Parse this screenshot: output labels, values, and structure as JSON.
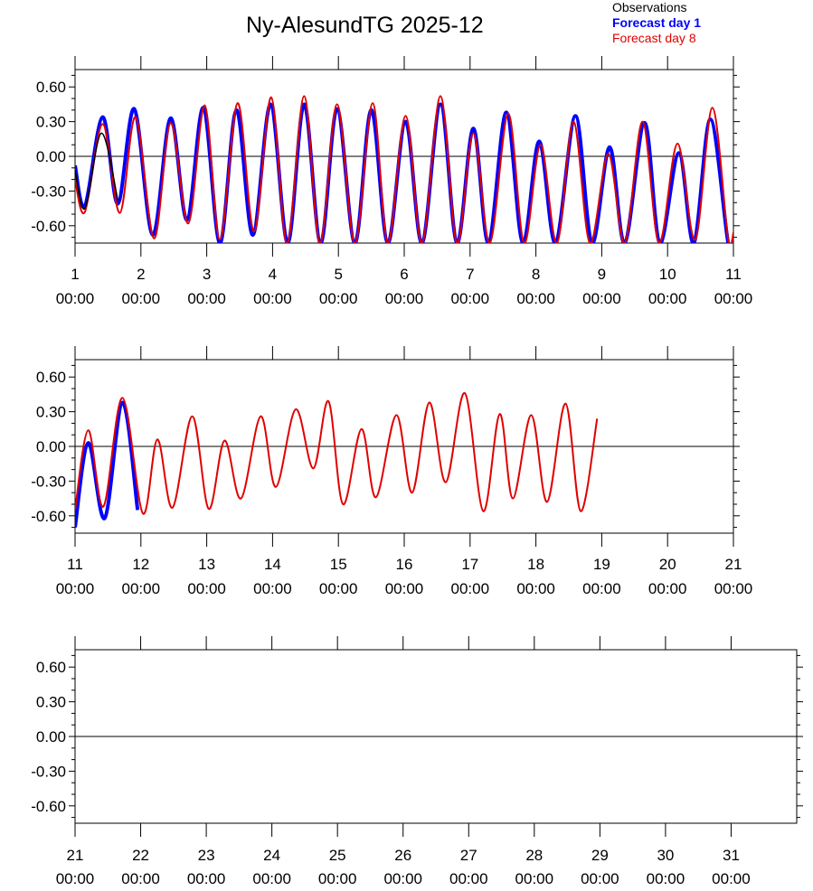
{
  "page": {
    "title": "Ny-AlesundTG 2025-12",
    "legend": [
      {
        "label": "Observations",
        "color": "#000000"
      },
      {
        "label": "Forecast day 1",
        "color": "#0000ff"
      },
      {
        "label": "Forecast day 8",
        "color": "#e00000"
      }
    ]
  },
  "chart_data": [
    {
      "type": "line",
      "title": "",
      "xlabel": "",
      "ylabel": "",
      "xlim": [
        1,
        11
      ],
      "ylim": [
        -0.75,
        0.75
      ],
      "yticks": [
        "0.60",
        "0.30",
        "0.00",
        "-0.30",
        "-0.60"
      ],
      "xtick_days": [
        "1",
        "2",
        "3",
        "4",
        "5",
        "6",
        "7",
        "8",
        "9",
        "10",
        "11"
      ],
      "xtick_time": "00:00",
      "zero_line": true,
      "series": [
        {
          "name": "Observations",
          "color": "#000000",
          "x": [
            1.0,
            1.15,
            1.4,
            1.65
          ],
          "y": [
            -0.12,
            -0.45,
            0.2,
            -0.38
          ]
        },
        {
          "name": "Forecast day 1",
          "color": "#0000ff",
          "x": [
            1.0,
            1.15,
            1.42,
            1.65,
            1.9,
            2.18,
            2.45,
            2.7,
            2.95,
            3.2,
            3.45,
            3.7,
            3.97,
            4.23,
            4.48,
            4.73,
            4.98,
            5.25,
            5.5,
            5.75,
            6.02,
            6.27,
            6.55,
            6.8,
            7.05,
            7.28,
            7.55,
            7.8,
            8.05,
            8.3,
            8.6,
            8.85,
            9.12,
            9.35,
            9.65,
            9.88,
            10.17,
            10.4,
            10.65,
            10.92,
            11.0
          ],
          "y": [
            -0.08,
            -0.43,
            0.34,
            -0.41,
            0.41,
            -0.68,
            0.33,
            -0.55,
            0.42,
            -0.75,
            0.4,
            -0.68,
            0.45,
            -0.75,
            0.45,
            -0.75,
            0.41,
            -0.75,
            0.4,
            -0.75,
            0.3,
            -0.75,
            0.45,
            -0.75,
            0.24,
            -0.75,
            0.38,
            -0.75,
            0.13,
            -0.75,
            0.35,
            -0.75,
            0.08,
            -0.75,
            0.29,
            -0.75,
            0.03,
            -0.75,
            0.32,
            -0.75,
            -0.71
          ]
        },
        {
          "name": "Forecast day 8",
          "color": "#e00000",
          "x": [
            1.0,
            1.15,
            1.42,
            1.68,
            1.92,
            2.2,
            2.45,
            2.72,
            2.97,
            3.2,
            3.47,
            3.72,
            3.98,
            4.22,
            4.48,
            4.72,
            4.98,
            5.25,
            5.52,
            5.75,
            6.02,
            6.27,
            6.55,
            6.8,
            7.05,
            7.3,
            7.58,
            7.82,
            8.07,
            8.32,
            8.57,
            8.82,
            9.1,
            9.35,
            9.62,
            9.87,
            10.15,
            10.42,
            10.68,
            10.92,
            11.0
          ],
          "y": [
            -0.2,
            -0.48,
            0.28,
            -0.49,
            0.34,
            -0.71,
            0.29,
            -0.58,
            0.44,
            -0.72,
            0.46,
            -0.65,
            0.51,
            -0.75,
            0.52,
            -0.75,
            0.45,
            -0.75,
            0.46,
            -0.75,
            0.35,
            -0.75,
            0.52,
            -0.75,
            0.2,
            -0.75,
            0.37,
            -0.75,
            0.1,
            -0.75,
            0.3,
            -0.75,
            0.02,
            -0.75,
            0.3,
            -0.75,
            0.11,
            -0.72,
            0.42,
            -0.72,
            -0.66
          ]
        }
      ]
    },
    {
      "type": "line",
      "title": "",
      "xlabel": "",
      "ylabel": "",
      "xlim": [
        11,
        21
      ],
      "ylim": [
        -0.75,
        0.75
      ],
      "yticks": [
        "0.60",
        "0.30",
        "0.00",
        "-0.30",
        "-0.60"
      ],
      "xtick_days": [
        "11",
        "12",
        "13",
        "14",
        "15",
        "16",
        "17",
        "18",
        "19",
        "20",
        "21"
      ],
      "xtick_time": "00:00",
      "zero_line": true,
      "series": [
        {
          "name": "Forecast day 1",
          "color": "#0000ff",
          "x": [
            11.0,
            11.2,
            11.45,
            11.72,
            11.95
          ],
          "y": [
            -0.7,
            0.03,
            -0.62,
            0.38,
            -0.55
          ]
        },
        {
          "name": "Forecast day 8",
          "color": "#e00000",
          "x": [
            11.0,
            11.2,
            11.43,
            11.72,
            12.03,
            12.25,
            12.48,
            12.78,
            13.03,
            13.27,
            13.52,
            13.82,
            14.05,
            14.35,
            14.62,
            14.85,
            15.07,
            15.35,
            15.57,
            15.88,
            16.12,
            16.38,
            16.63,
            16.92,
            17.2,
            17.45,
            17.65,
            17.93,
            18.17,
            18.45,
            18.68,
            18.93
          ],
          "y": [
            -0.55,
            0.14,
            -0.52,
            0.42,
            -0.58,
            0.06,
            -0.53,
            0.26,
            -0.54,
            0.05,
            -0.45,
            0.26,
            -0.35,
            0.32,
            -0.19,
            0.39,
            -0.5,
            0.15,
            -0.44,
            0.27,
            -0.4,
            0.38,
            -0.31,
            0.46,
            -0.56,
            0.28,
            -0.45,
            0.27,
            -0.48,
            0.37,
            -0.56,
            0.24
          ]
        }
      ]
    },
    {
      "type": "line",
      "title": "",
      "xlabel": "",
      "ylabel": "",
      "xlim": [
        21,
        32
      ],
      "ylim": [
        -0.75,
        0.75
      ],
      "yticks": [
        "0.60",
        "0.30",
        "0.00",
        "-0.30",
        "-0.60"
      ],
      "xtick_days": [
        "21",
        "22",
        "23",
        "24",
        "25",
        "26",
        "27",
        "28",
        "29",
        "30",
        "31"
      ],
      "xtick_time": "00:00",
      "zero_line": true,
      "series": []
    }
  ]
}
